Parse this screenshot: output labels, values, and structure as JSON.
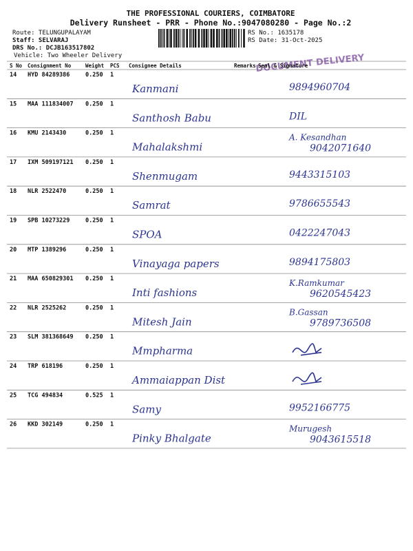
{
  "header": {
    "title": "THE PROFESSIONAL COURIERS, COIMBATORE",
    "subtitle": "Delivery Runsheet - PRR - Phone No.:9047080280 - Page No.:2",
    "route": "Route: TELUNGUPALAYAM",
    "staff": "Staff: SELVARAJ",
    "drs_no": "DRS No.: DCJB163517802",
    "vehicle": "Vehicle: Two Wheeler Delivery",
    "rs_no": "RS No.: 1635178",
    "rs_date": "RS Date: 31-Oct-2025",
    "stamp": "DOCUMENT DELIVERY"
  },
  "table": {
    "columns": [
      "S No",
      "Consignment No",
      "Weight",
      "PCS",
      "Consignee Details",
      "Remarks",
      "Seal & Signature"
    ],
    "rows": [
      [
        "14",
        "HYD 84289386",
        "0.250",
        "1"
      ],
      [
        "15",
        "MAA 111834007",
        "0.250",
        "1"
      ],
      [
        "16",
        "KMU 2143430",
        "0.250",
        "1"
      ],
      [
        "17",
        "IXM 509197121",
        "0.250",
        "1"
      ],
      [
        "18",
        "NLR 2522470",
        "0.250",
        "1"
      ],
      [
        "19",
        "SPB 10273229",
        "0.250",
        "1"
      ],
      [
        "20",
        "MTP 1389296",
        "0.250",
        "1"
      ],
      [
        "21",
        "MAA 650829301",
        "0.250",
        "1"
      ],
      [
        "22",
        "NLR 2525262",
        "0.250",
        "1"
      ],
      [
        "23",
        "SLM 381368649",
        "0.250",
        "1"
      ],
      [
        "24",
        "TRP 618196",
        "0.250",
        "1"
      ],
      [
        "25",
        "TCG 494834",
        "0.525",
        "1"
      ],
      [
        "26",
        "KKD 302149",
        "0.250",
        "1"
      ]
    ],
    "handwriting": [
      {
        "consignee": "Kanmani",
        "signature": [
          "9894960704"
        ]
      },
      {
        "consignee": "Santhosh Babu",
        "signature": [
          "DIL"
        ]
      },
      {
        "consignee": "Mahalakshmi",
        "signature": [
          "A. Kesandhan",
          "9042071640"
        ]
      },
      {
        "consignee": "Shenmugam",
        "signature": [
          "9443315103"
        ]
      },
      {
        "consignee": "Samrat",
        "signature": [
          "9786655543"
        ]
      },
      {
        "consignee": "SPOA",
        "signature": [
          "0422247043"
        ]
      },
      {
        "consignee": "Vinayaga papers",
        "signature": [
          "9894175803"
        ]
      },
      {
        "consignee": "Inti fashions",
        "signature": [
          "K.Ramkumar",
          "9620545423"
        ]
      },
      {
        "consignee": "Mitesh Jain",
        "signature": [
          "B.Gassan",
          "9789736508"
        ]
      },
      {
        "consignee": "Mmpharma",
        "signature": []
      },
      {
        "consignee": "Ammaiappan Dist",
        "signature": []
      },
      {
        "consignee": "Samy",
        "signature": [
          "9952166775"
        ]
      },
      {
        "consignee": "Pinky Bhalgate",
        "signature": [
          "Murugesh",
          "9043615518"
        ]
      }
    ]
  }
}
